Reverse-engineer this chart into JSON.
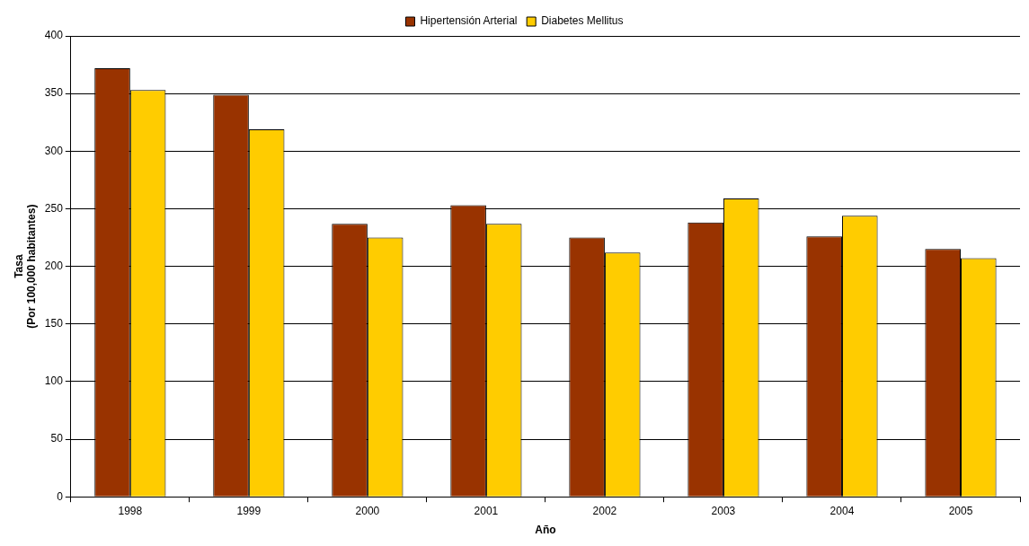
{
  "chart_data": {
    "type": "bar",
    "categories": [
      "1998",
      "1999",
      "2000",
      "2001",
      "2002",
      "2003",
      "2004",
      "2005"
    ],
    "series": [
      {
        "name": "Hipertensión Arterial",
        "color": "#993300",
        "values": [
          372,
          349,
          237,
          253,
          225,
          238,
          226,
          215
        ]
      },
      {
        "name": "Diabetes Mellitus",
        "color": "#ffcc00",
        "values": [
          353,
          319,
          225,
          237,
          212,
          259,
          244,
          207
        ]
      }
    ],
    "xlabel": "Año",
    "ylabel": "Tasa\n(Por 100,000 habitantes)",
    "ylim": [
      0,
      400
    ],
    "yticks": [
      0,
      50,
      100,
      150,
      200,
      250,
      300,
      350,
      400
    ],
    "grid": "y",
    "legend": "top"
  }
}
